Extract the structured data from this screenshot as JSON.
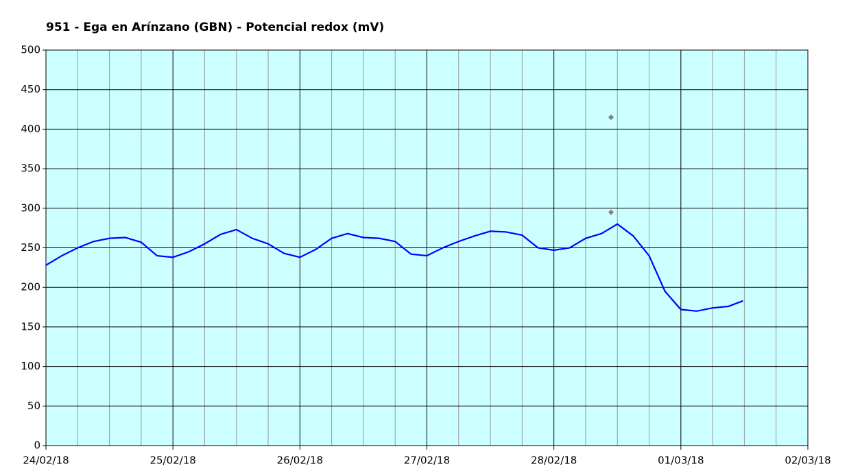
{
  "chart_data": {
    "type": "line",
    "title": "951 - Ega en Arínzano (GBN) - Potencial redox (mV)",
    "xlim": [
      0,
      6
    ],
    "xticks": [
      {
        "value": 0,
        "label": "24/02/18"
      },
      {
        "value": 1,
        "label": "25/02/18"
      },
      {
        "value": 2,
        "label": "26/02/18"
      },
      {
        "value": 3,
        "label": "27/02/18"
      },
      {
        "value": 4,
        "label": "28/02/18"
      },
      {
        "value": 5,
        "label": "01/03/18"
      },
      {
        "value": 6,
        "label": "02/03/18"
      }
    ],
    "xminorticks": [
      0.25,
      0.5,
      0.75,
      1.25,
      1.5,
      1.75,
      2.25,
      2.5,
      2.75,
      3.25,
      3.5,
      3.75,
      4.25,
      4.5,
      4.75,
      5.25,
      5.5,
      5.75
    ],
    "ylim": [
      0,
      500
    ],
    "yticks": [
      0,
      50,
      100,
      150,
      200,
      250,
      300,
      350,
      400,
      450,
      500
    ],
    "grid": true,
    "background": "#ccffff",
    "series": [
      {
        "type": "line",
        "color": "#0000ff",
        "x": [
          0,
          0.125,
          0.25,
          0.375,
          0.5,
          0.625,
          0.75,
          0.875,
          1,
          1.125,
          1.25,
          1.375,
          1.5,
          1.625,
          1.75,
          1.875,
          2,
          2.125,
          2.25,
          2.375,
          2.5,
          2.625,
          2.75,
          2.875,
          3,
          3.125,
          3.25,
          3.375,
          3.5,
          3.625,
          3.75,
          3.875,
          4,
          4.125,
          4.25,
          4.375,
          4.5,
          4.625,
          4.75,
          4.875,
          5,
          5.125,
          5.25,
          5.375,
          5.49
        ],
        "values": [
          228,
          240,
          250,
          258,
          262,
          263,
          257,
          240,
          238,
          245,
          255,
          267,
          273,
          262,
          255,
          243,
          238,
          248,
          262,
          268,
          263,
          262,
          258,
          242,
          240,
          250,
          258,
          265,
          271,
          270,
          266,
          250,
          247,
          250,
          262,
          268,
          280,
          265,
          240,
          195,
          172,
          170,
          174,
          176,
          183
        ]
      },
      {
        "type": "scatter",
        "color": "#808080",
        "x": [
          4.45,
          4.45
        ],
        "values": [
          415,
          295
        ]
      }
    ]
  }
}
